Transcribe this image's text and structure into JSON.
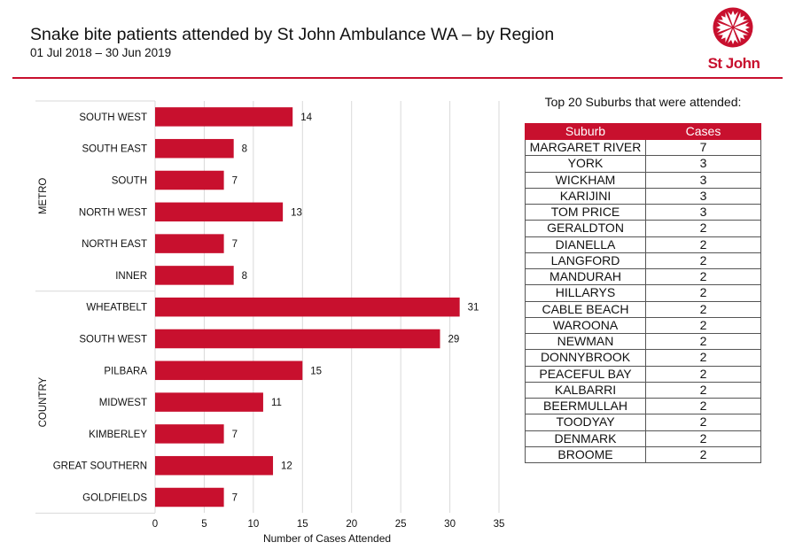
{
  "header": {
    "title": "Snake bite patients attended by St John Ambulance WA – by Region",
    "subtitle": "01 Jul 2018 – 30 Jun 2019",
    "logo_text": "St John"
  },
  "colors": {
    "accent": "#c8102e",
    "bar": "#c8102e",
    "grid": "#d9d9d9",
    "text": "#111111"
  },
  "chart_data": {
    "type": "bar",
    "orientation": "horizontal",
    "title": "",
    "xlabel": "Number of Cases Attended",
    "ylabel": "",
    "xlim": [
      0,
      35
    ],
    "xticks": [
      0,
      5,
      10,
      15,
      20,
      25,
      30,
      35
    ],
    "grid": "vertical",
    "data_labels": true,
    "groups": [
      {
        "name": "METRO",
        "categories": [
          "SOUTH WEST",
          "SOUTH EAST",
          "SOUTH",
          "NORTH WEST",
          "NORTH EAST",
          "INNER"
        ],
        "values": [
          14,
          8,
          7,
          13,
          7,
          8
        ]
      },
      {
        "name": "COUNTRY",
        "categories": [
          "WHEATBELT",
          "SOUTH WEST",
          "PILBARA",
          "MIDWEST",
          "KIMBERLEY",
          "GREAT SOUTHERN",
          "GOLDFIELDS"
        ],
        "values": [
          31,
          29,
          15,
          11,
          7,
          12,
          7
        ]
      }
    ]
  },
  "table": {
    "title": "Top 20 Suburbs that were attended:",
    "headers": [
      "Suburb",
      "Cases"
    ],
    "rows": [
      [
        "MARGARET RIVER",
        "7"
      ],
      [
        "YORK",
        "3"
      ],
      [
        "WICKHAM",
        "3"
      ],
      [
        "KARIJINI",
        "3"
      ],
      [
        "TOM PRICE",
        "3"
      ],
      [
        "GERALDTON",
        "2"
      ],
      [
        "DIANELLA",
        "2"
      ],
      [
        "LANGFORD",
        "2"
      ],
      [
        "MANDURAH",
        "2"
      ],
      [
        "HILLARYS",
        "2"
      ],
      [
        "CABLE BEACH",
        "2"
      ],
      [
        "WAROONA",
        "2"
      ],
      [
        "NEWMAN",
        "2"
      ],
      [
        "DONNYBROOK",
        "2"
      ],
      [
        "PEACEFUL BAY",
        "2"
      ],
      [
        "KALBARRI",
        "2"
      ],
      [
        "BEERMULLAH",
        "2"
      ],
      [
        "TOODYAY",
        "2"
      ],
      [
        "DENMARK",
        "2"
      ],
      [
        "BROOME",
        "2"
      ]
    ]
  }
}
